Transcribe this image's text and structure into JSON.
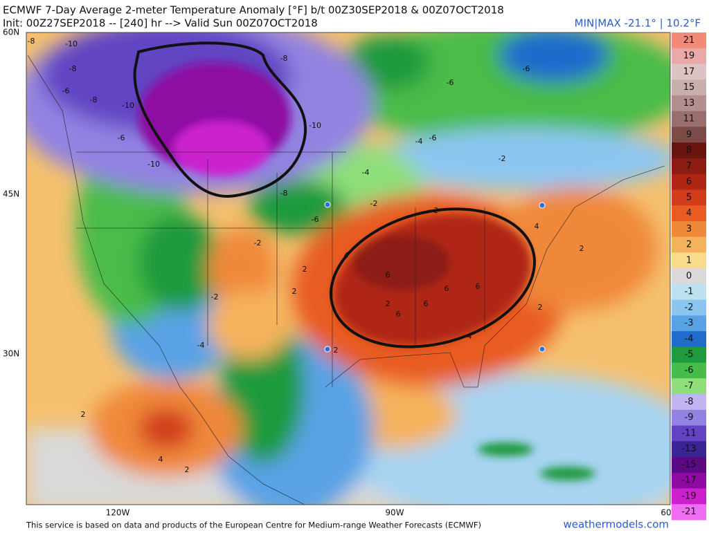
{
  "header": {
    "title": "ECMWF 7-Day Average 2-meter Temperature Anomaly [°F] b/t 00Z30SEP2018 & 00Z07OCT2018",
    "init": "Init: 00Z27SEP2018 -- [240] hr --> Valid Sun 00Z07OCT2018",
    "minmax": "MIN|MAX -21.1° | 10.2°F"
  },
  "axes": {
    "lat_labels": [
      "60N",
      "45N",
      "30N"
    ],
    "lon_labels": [
      "120W",
      "90W",
      "60"
    ]
  },
  "colorbar": [
    {
      "label": "21",
      "color": "#f28a7a"
    },
    {
      "label": "19",
      "color": "#eaa8a8"
    },
    {
      "label": "17",
      "color": "#dcc4c4"
    },
    {
      "label": "15",
      "color": "#c9aeae"
    },
    {
      "label": "13",
      "color": "#b38e8e"
    },
    {
      "label": "11",
      "color": "#986e6e"
    },
    {
      "label": "9",
      "color": "#7c4b48"
    },
    {
      "label": "8",
      "color": "#6a1410"
    },
    {
      "label": "7",
      "color": "#8c1c12"
    },
    {
      "label": "6",
      "color": "#b02614"
    },
    {
      "label": "5",
      "color": "#d23c1a"
    },
    {
      "label": "4",
      "color": "#e85c22"
    },
    {
      "label": "3",
      "color": "#f0883a"
    },
    {
      "label": "2",
      "color": "#f5b25c"
    },
    {
      "label": "1",
      "color": "#f8dc8c"
    },
    {
      "label": "0",
      "color": "#d9d9d9"
    },
    {
      "label": "-1",
      "color": "#bce2f2"
    },
    {
      "label": "-2",
      "color": "#8cc6f0"
    },
    {
      "label": "-3",
      "color": "#5aa2e6"
    },
    {
      "label": "-4",
      "color": "#1f6ccc"
    },
    {
      "label": "-5",
      "color": "#1f9a3c"
    },
    {
      "label": "-6",
      "color": "#48bc4a"
    },
    {
      "label": "-7",
      "color": "#8ede7a"
    },
    {
      "label": "-8",
      "color": "#c2b4f0"
    },
    {
      "label": "-9",
      "color": "#9282e2"
    },
    {
      "label": "-11",
      "color": "#6244c2"
    },
    {
      "label": "-13",
      "color": "#3c2494"
    },
    {
      "label": "-15",
      "color": "#5c0a84"
    },
    {
      "label": "-17",
      "color": "#8e0aa2"
    },
    {
      "label": "-19",
      "color": "#cc20ce"
    },
    {
      "label": "-21",
      "color": "#f06cf0"
    }
  ],
  "map_labels": [
    "-8",
    "-10",
    "-8",
    "-6",
    "-8",
    "-10",
    "-10",
    "-8",
    "-10",
    "-6",
    "-6",
    "-6",
    "-4",
    "-8",
    "-6",
    "-2",
    "-4",
    "-2",
    "-6",
    "2",
    "2",
    "4",
    "6",
    "6",
    "6",
    "6",
    "6",
    "4",
    "2",
    "2",
    "2",
    "2",
    "2",
    "4",
    "2",
    "-2",
    "-4",
    "-2",
    "2",
    "4"
  ],
  "footer": {
    "credit": "This service is based on data and products of the European Centre for Medium-range Weather Forecasts (ECMWF)",
    "site": "weathermodels.com"
  }
}
